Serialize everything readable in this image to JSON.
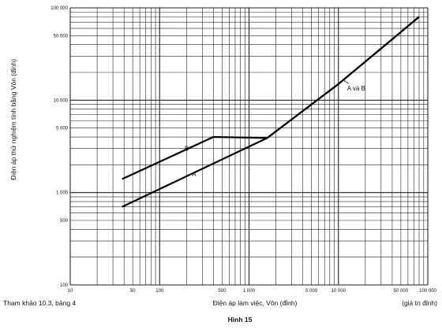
{
  "chart_data": {
    "type": "line",
    "x_scale": "log",
    "y_scale": "log",
    "xlim": [
      10,
      100000
    ],
    "ylim": [
      100,
      100000
    ],
    "grid": true,
    "xlabel": "Điện áp làm việc, Vôn (đỉnh)",
    "ylabel": "Điện áp thử nghiệm tính bằng Vôn (đỉnh)",
    "x_unit_note": "(giá trị đỉnh)",
    "x_ticks": [
      {
        "value": 10,
        "label": "10"
      },
      {
        "value": 50,
        "label": "50"
      },
      {
        "value": 100,
        "label": "100"
      },
      {
        "value": 500,
        "label": "500"
      },
      {
        "value": 1000,
        "label": "1 000"
      },
      {
        "value": 5000,
        "label": "5 000"
      },
      {
        "value": 10000,
        "label": "10 000"
      },
      {
        "value": 50000,
        "label": "50 000"
      },
      {
        "value": 100000,
        "label": "100 000"
      }
    ],
    "y_ticks": [
      {
        "value": 100,
        "label": "100"
      },
      {
        "value": 500,
        "label": "500"
      },
      {
        "value": 1000,
        "label": "1 000"
      },
      {
        "value": 5000,
        "label": "5 000"
      },
      {
        "value": 10000,
        "label": "10 000"
      },
      {
        "value": 50000,
        "label": "50 000"
      },
      {
        "value": 100000,
        "label": "100 000"
      }
    ],
    "series": [
      {
        "name": "A",
        "points": [
          [
            38,
            700
          ],
          [
            1600,
            3900
          ],
          [
            10000,
            15000
          ],
          [
            80000,
            80000
          ]
        ]
      },
      {
        "name": "B",
        "points": [
          [
            38,
            1400
          ],
          [
            400,
            4000
          ],
          [
            1600,
            3900
          ],
          [
            10000,
            15000
          ],
          [
            80000,
            80000
          ]
        ]
      }
    ],
    "annotations": [
      {
        "text": "A",
        "x": 230,
        "y": 1500
      },
      {
        "text": "B",
        "x": 190,
        "y": 2850
      },
      {
        "text": "A và B",
        "x": 12500,
        "y": 12700
      }
    ],
    "footer_left": "Tham khảo 10.3, bảng 4",
    "caption": "Hình 15"
  }
}
